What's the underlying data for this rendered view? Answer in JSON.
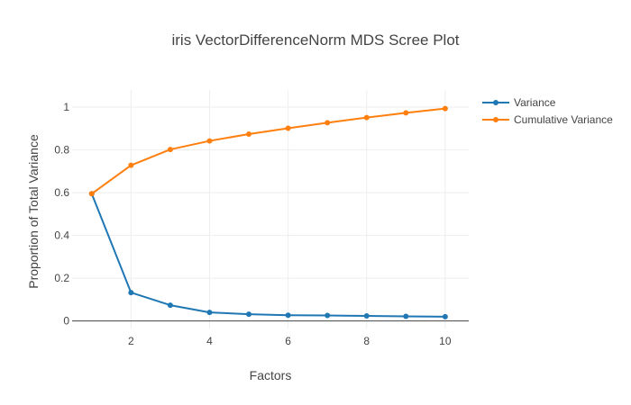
{
  "chart_data": {
    "type": "line",
    "title": "iris VectorDifferenceNorm MDS Scree Plot",
    "xlabel": "Factors",
    "ylabel": "Proportion of Total Variance",
    "xlim": [
      0.5,
      10.6
    ],
    "ylim": [
      -0.035,
      1.08
    ],
    "xticks": [
      2,
      4,
      6,
      8,
      10
    ],
    "yticks": [
      0,
      0.2,
      0.4,
      0.6,
      0.8,
      1
    ],
    "ytick_labels": [
      "0",
      "0.2",
      "0.4",
      "0.6",
      "0.8",
      "1"
    ],
    "grid": true,
    "legend_position": "top-right",
    "x": [
      1,
      2,
      3,
      4,
      5,
      6,
      7,
      8,
      9,
      10
    ],
    "series": [
      {
        "name": "Variance",
        "color": "#1f77b4",
        "values": [
          0.595,
          0.133,
          0.074,
          0.04,
          0.032,
          0.027,
          0.026,
          0.024,
          0.022,
          0.02
        ]
      },
      {
        "name": "Cumulative Variance",
        "color": "#ff7f0e",
        "values": [
          0.595,
          0.728,
          0.802,
          0.842,
          0.874,
          0.901,
          0.927,
          0.951,
          0.973,
          0.993
        ]
      }
    ]
  }
}
